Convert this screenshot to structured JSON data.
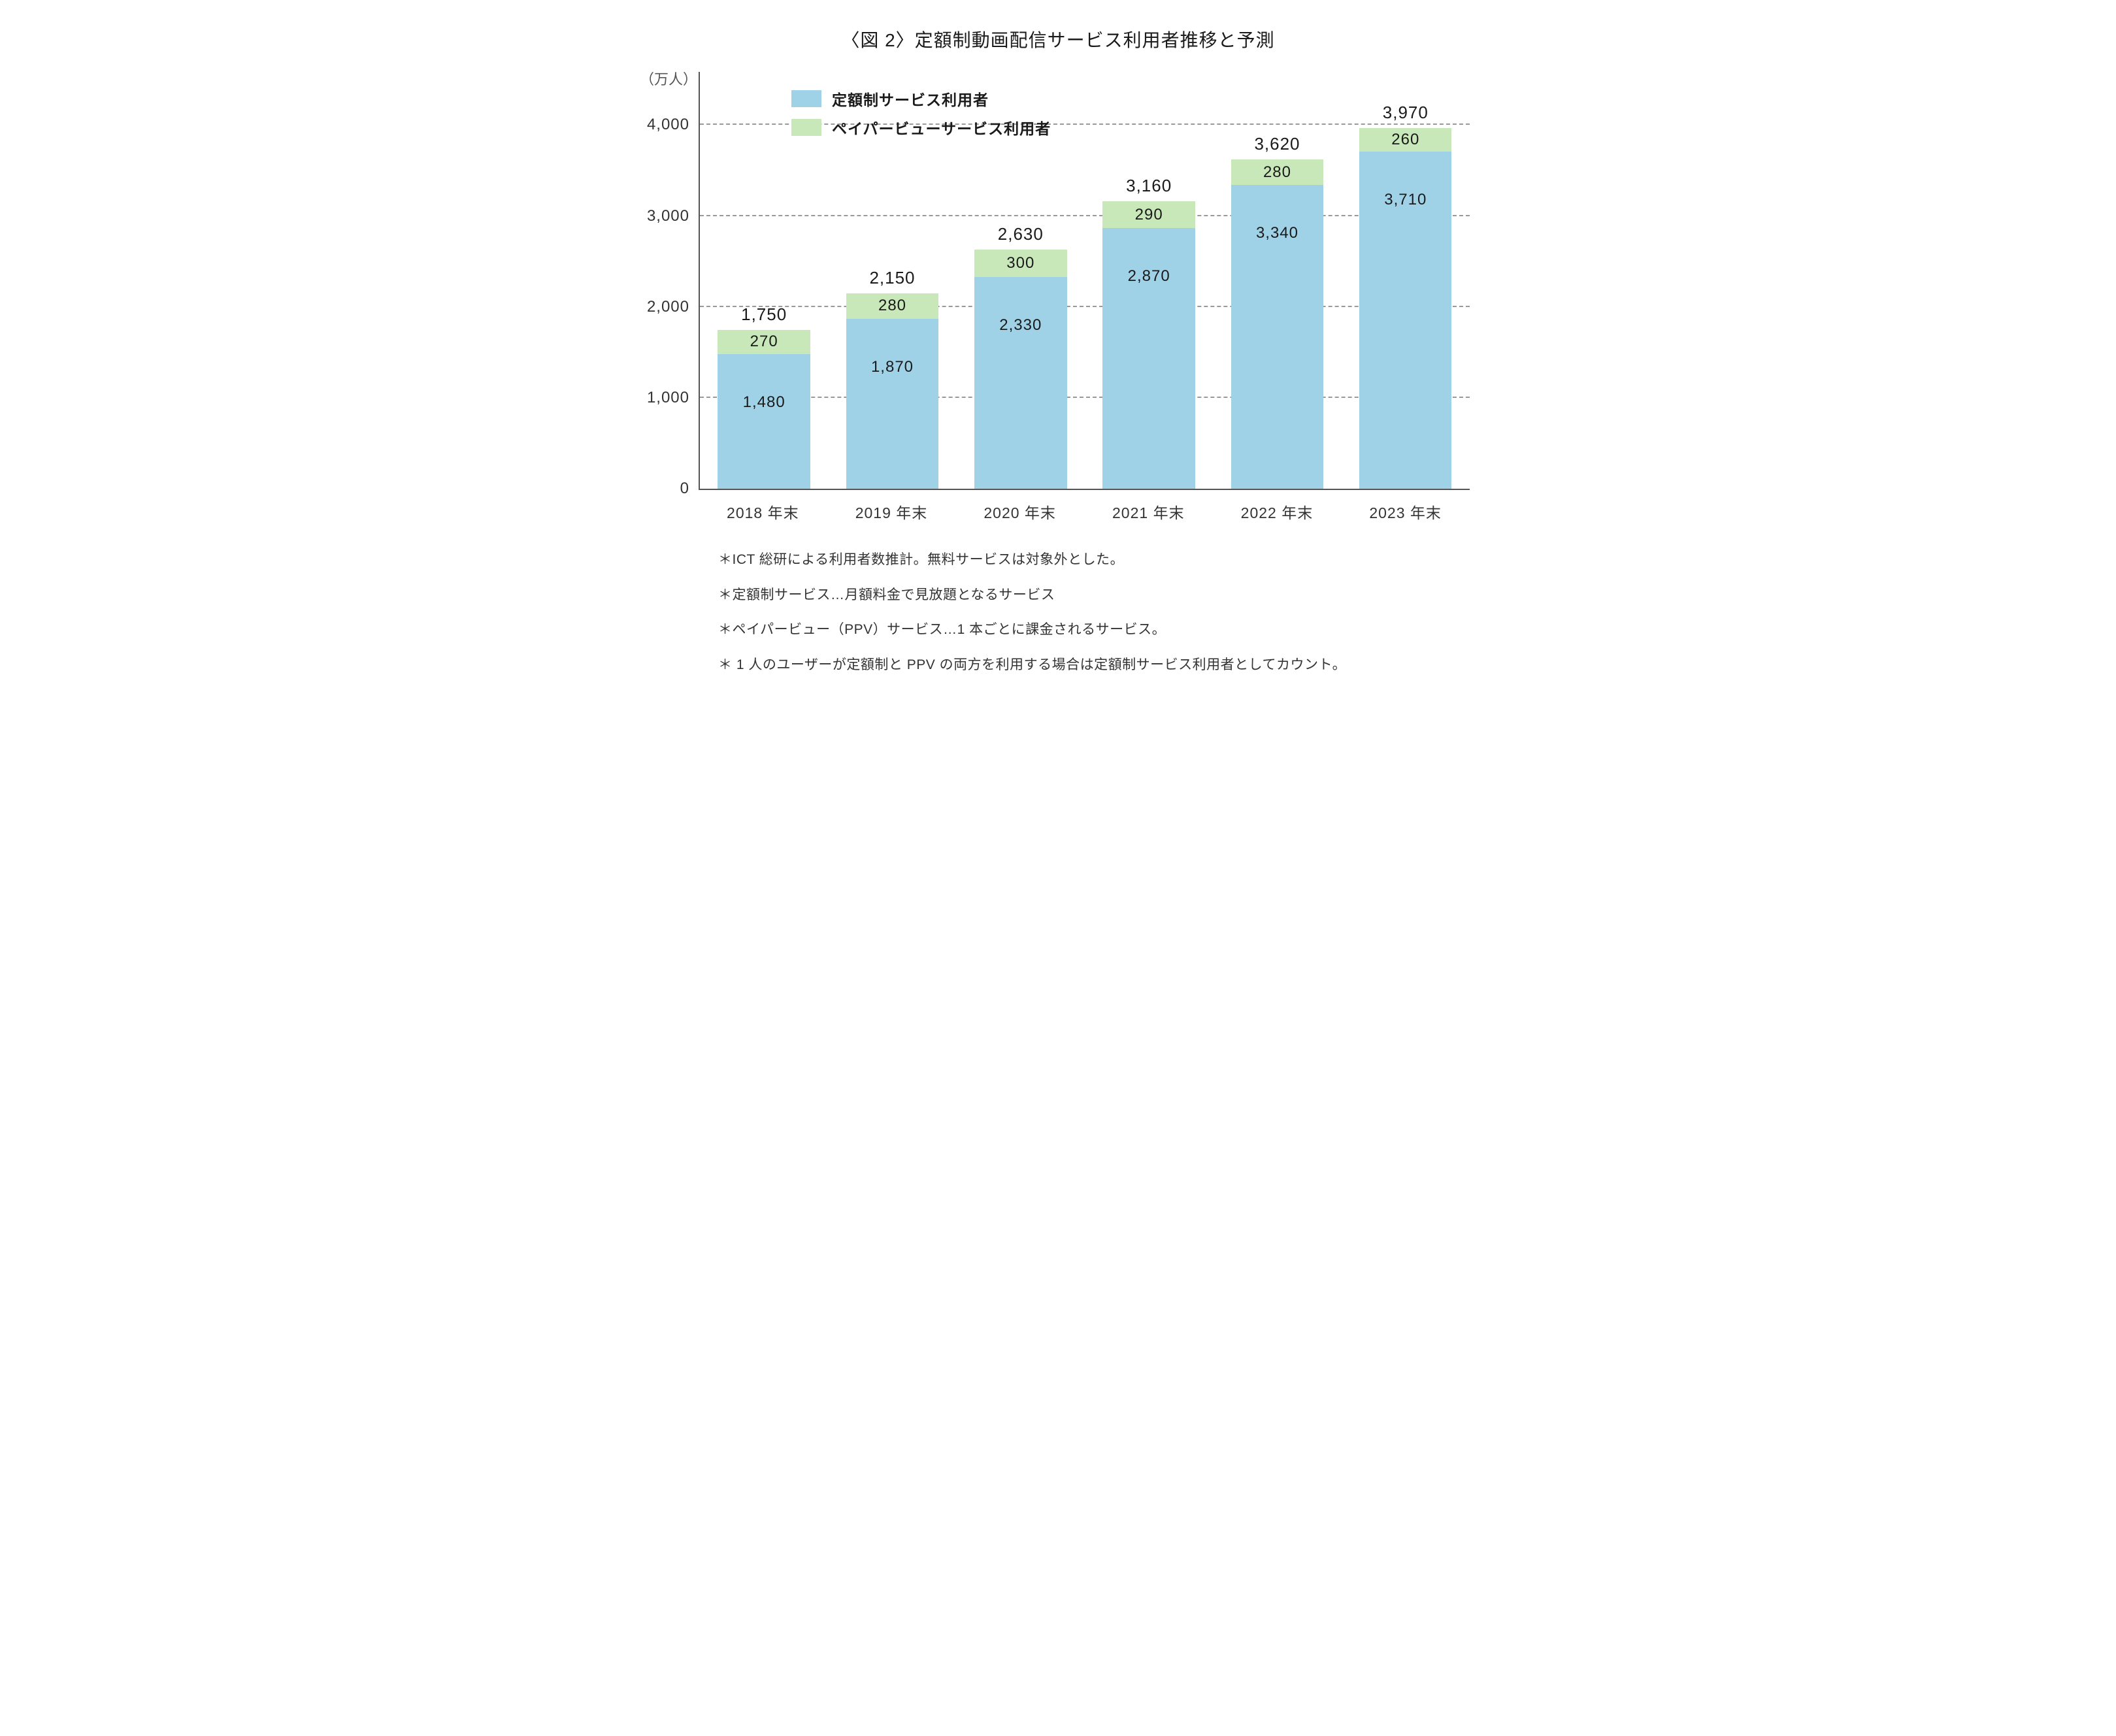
{
  "chart": {
    "type": "stacked-bar",
    "title": "〈図 2〉定額制動画配信サービス利用者推移と予測",
    "y_unit": "（万人）",
    "ylim": [
      0,
      4600
    ],
    "y_ticks": [
      {
        "value": 0,
        "label": "0"
      },
      {
        "value": 1000,
        "label": "1,000"
      },
      {
        "value": 2000,
        "label": "2,000"
      },
      {
        "value": 3000,
        "label": "3,000"
      },
      {
        "value": 4000,
        "label": "4,000"
      }
    ],
    "grid_color": "#999999",
    "axis_color": "#555555",
    "background_color": "#ffffff",
    "bar_width_pct": 12,
    "series": [
      {
        "key": "subscription",
        "label": "定額制サービス利用者",
        "color": "#a0d2e7"
      },
      {
        "key": "ppv",
        "label": "ペイパービューサービス利用者",
        "color": "#c8e8b9"
      }
    ],
    "categories": [
      "2018 年末",
      "2019 年末",
      "2020 年末",
      "2021 年末",
      "2022 年末",
      "2023 年末"
    ],
    "stacks": [
      {
        "total": 1750,
        "total_label": "1,750",
        "subscription": 1480,
        "subscription_label": "1,480",
        "ppv": 270,
        "ppv_label": "270"
      },
      {
        "total": 2150,
        "total_label": "2,150",
        "subscription": 1870,
        "subscription_label": "1,870",
        "ppv": 280,
        "ppv_label": "280"
      },
      {
        "total": 2630,
        "total_label": "2,630",
        "subscription": 2330,
        "subscription_label": "2,330",
        "ppv": 300,
        "ppv_label": "300"
      },
      {
        "total": 3160,
        "total_label": "3,160",
        "subscription": 2870,
        "subscription_label": "2,870",
        "ppv": 290,
        "ppv_label": "290"
      },
      {
        "total": 3620,
        "total_label": "3,620",
        "subscription": 3340,
        "subscription_label": "3,340",
        "ppv": 280,
        "ppv_label": "280"
      },
      {
        "total": 3970,
        "total_label": "3,970",
        "subscription": 3710,
        "subscription_label": "3,710",
        "ppv": 260,
        "ppv_label": "260"
      }
    ],
    "value_label_fontsize": 24,
    "total_label_fontsize": 26,
    "axis_label_fontsize": 24,
    "x_label_fontsize": 23,
    "legend_fontsize": 23,
    "legend_position": "top-left-inset",
    "title_fontsize": 28
  },
  "footnotes": [
    "＊ICT 総研による利用者数推計。無料サービスは対象外とした。",
    "＊定額制サービス…月額料金で見放題となるサービス",
    "＊ペイパービュー（PPV）サービス…1 本ごとに課金されるサービス。",
    "＊ 1 人のユーザーが定額制と PPV の両方を利用する場合は定額制サービス利用者としてカウント。"
  ]
}
